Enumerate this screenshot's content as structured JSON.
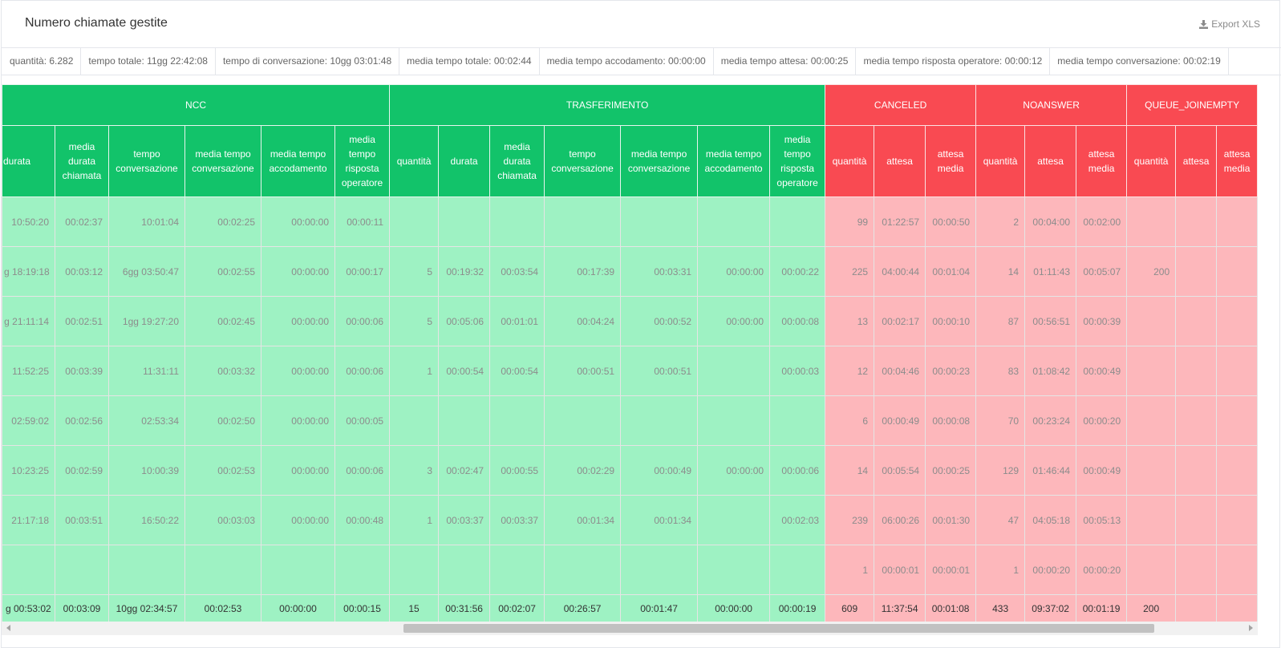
{
  "header": {
    "title": "Numero chiamate gestite",
    "export_label": "Export XLS",
    "export_icon": "download-icon"
  },
  "summary": [
    "quantità: 6.282",
    "tempo totale: 11gg 22:42:08",
    "tempo di conversazione: 10gg 03:01:48",
    "media tempo totale: 00:02:44",
    "media tempo accodamento: 00:00:00",
    "media tempo attesa: 00:00:25",
    "media tempo risposta operatore: 00:00:12",
    "media tempo conversazione: 00:02:19"
  ],
  "colors": {
    "green_header": "#12c36a",
    "green_cell": "#9ef2c3",
    "red_header": "#f94a52",
    "red_cell": "#fdb7bb"
  },
  "table": {
    "groups": [
      {
        "label": "NCC",
        "color": "green",
        "span": 7
      },
      {
        "label": "TRASFERIMENTO",
        "color": "green",
        "span": 8
      },
      {
        "label": "CANCELED",
        "color": "red",
        "span": 3
      },
      {
        "label": "NOANSWER",
        "color": "red",
        "span": 3
      },
      {
        "label": "QUEUE_JOINEMPTY",
        "color": "red",
        "span": 3
      }
    ],
    "columns": [
      {
        "label": "durata",
        "color": "green"
      },
      {
        "label": "media durata chiamata",
        "color": "green"
      },
      {
        "label": "tempo conversazione",
        "color": "green"
      },
      {
        "label": "media tempo conversazione",
        "color": "green"
      },
      {
        "label": "media tempo accodamento",
        "color": "green"
      },
      {
        "label": "media tempo risposta operatore",
        "color": "green"
      },
      {
        "label": "quantità",
        "color": "green"
      },
      {
        "label": "durata",
        "color": "green"
      },
      {
        "label": "media durata chiamata",
        "color": "green"
      },
      {
        "label": "tempo conversazione",
        "color": "green"
      },
      {
        "label": "media tempo conversazione",
        "color": "green"
      },
      {
        "label": "media tempo accodamento",
        "color": "green"
      },
      {
        "label": "media tempo risposta operatore",
        "color": "green"
      },
      {
        "label": "quantità",
        "color": "red"
      },
      {
        "label": "attesa",
        "color": "red"
      },
      {
        "label": "attesa media",
        "color": "red"
      },
      {
        "label": "quantità",
        "color": "red"
      },
      {
        "label": "attesa",
        "color": "red"
      },
      {
        "label": "attesa media",
        "color": "red"
      },
      {
        "label": "quantità",
        "color": "red"
      },
      {
        "label": "attesa",
        "color": "red"
      },
      {
        "label": "attesa media",
        "color": "red"
      }
    ],
    "rows": [
      [
        "10:50:20",
        "00:02:37",
        "10:01:04",
        "00:02:25",
        "00:00:00",
        "00:00:11",
        "",
        "",
        "",
        "",
        "",
        "",
        "",
        "99",
        "01:22:57",
        "00:00:50",
        "2",
        "00:04:00",
        "00:02:00",
        "",
        "",
        ""
      ],
      [
        "g 18:19:18",
        "00:03:12",
        "6gg 03:50:47",
        "00:02:55",
        "00:00:00",
        "00:00:17",
        "5",
        "00:19:32",
        "00:03:54",
        "00:17:39",
        "00:03:31",
        "00:00:00",
        "00:00:22",
        "225",
        "04:00:44",
        "00:01:04",
        "14",
        "01:11:43",
        "00:05:07",
        "200",
        "",
        ""
      ],
      [
        "g 21:11:14",
        "00:02:51",
        "1gg 19:27:20",
        "00:02:45",
        "00:00:00",
        "00:00:06",
        "5",
        "00:05:06",
        "00:01:01",
        "00:04:24",
        "00:00:52",
        "00:00:00",
        "00:00:08",
        "13",
        "00:02:17",
        "00:00:10",
        "87",
        "00:56:51",
        "00:00:39",
        "",
        "",
        ""
      ],
      [
        "11:52:25",
        "00:03:39",
        "11:31:11",
        "00:03:32",
        "00:00:00",
        "00:00:06",
        "1",
        "00:00:54",
        "00:00:54",
        "00:00:51",
        "00:00:51",
        "",
        "00:00:03",
        "12",
        "00:04:46",
        "00:00:23",
        "83",
        "01:08:42",
        "00:00:49",
        "",
        "",
        ""
      ],
      [
        "02:59:02",
        "00:02:56",
        "02:53:34",
        "00:02:50",
        "00:00:00",
        "00:00:05",
        "",
        "",
        "",
        "",
        "",
        "",
        "",
        "6",
        "00:00:49",
        "00:00:08",
        "70",
        "00:23:24",
        "00:00:20",
        "",
        "",
        ""
      ],
      [
        "10:23:25",
        "00:02:59",
        "10:00:39",
        "00:02:53",
        "00:00:00",
        "00:00:06",
        "3",
        "00:02:47",
        "00:00:55",
        "00:02:29",
        "00:00:49",
        "00:00:00",
        "00:00:06",
        "14",
        "00:05:54",
        "00:00:25",
        "129",
        "01:46:44",
        "00:00:49",
        "",
        "",
        ""
      ],
      [
        "21:17:18",
        "00:03:51",
        "16:50:22",
        "00:03:03",
        "00:00:00",
        "00:00:48",
        "1",
        "00:03:37",
        "00:03:37",
        "00:01:34",
        "00:01:34",
        "",
        "00:02:03",
        "239",
        "06:00:26",
        "00:01:30",
        "47",
        "04:05:18",
        "00:05:13",
        "",
        "",
        ""
      ],
      [
        "",
        "",
        "",
        "",
        "",
        "",
        "",
        "",
        "",
        "",
        "",
        "",
        "",
        "1",
        "00:00:01",
        "00:00:01",
        "1",
        "00:00:20",
        "00:00:20",
        "",
        "",
        ""
      ]
    ],
    "totals": [
      "g 00:53:02",
      "00:03:09",
      "10gg 02:34:57",
      "00:02:53",
      "00:00:00",
      "00:00:15",
      "15",
      "00:31:56",
      "00:02:07",
      "00:26:57",
      "00:01:47",
      "00:00:00",
      "00:00:19",
      "609",
      "11:37:54",
      "00:01:08",
      "433",
      "09:37:02",
      "00:01:19",
      "200",
      "",
      ""
    ]
  }
}
